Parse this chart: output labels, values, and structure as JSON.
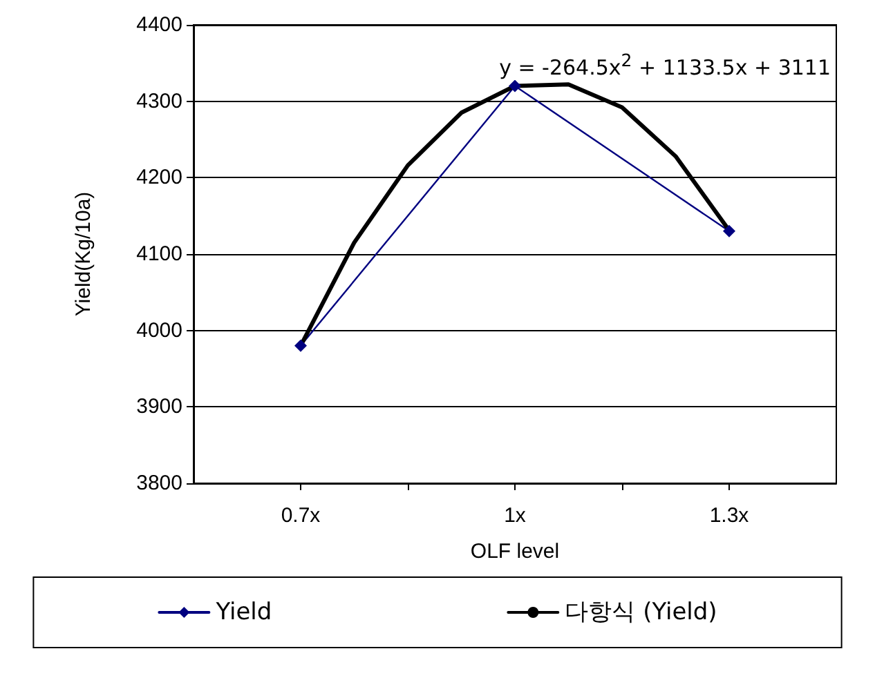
{
  "chart_data": {
    "type": "line",
    "xlabel": "OLF level",
    "ylabel": "Yield(Kg/10a)",
    "xlim": [
      0.55,
      1.45
    ],
    "xticks": [
      {
        "value": 0.7,
        "label": "0.7x"
      },
      {
        "value": 0.85,
        "label": null
      },
      {
        "value": 1,
        "label": "1x"
      },
      {
        "value": 1.15,
        "label": null
      },
      {
        "value": 1.3,
        "label": "1.3x"
      }
    ],
    "ylim": [
      3800,
      4400
    ],
    "yticks": [
      3800,
      3900,
      4000,
      4100,
      4200,
      4300,
      4400
    ],
    "grid": "y",
    "legend": "bottom",
    "line_style": "solid",
    "annotations": [
      "y = -264.5x$^{2}$ + 1133.5x + 3111"
    ],
    "series": [
      {
        "name": "Yield",
        "color": "#000080",
        "marker": "diamond",
        "x": [
          0.7,
          1,
          1.3
        ],
        "values": [
          3980,
          4320,
          4130
        ]
      },
      {
        "name": "다항식 (Yield)",
        "color": "#000000",
        "marker": "none",
        "type": "line",
        "x": [
          0.7,
          0.775,
          0.85,
          0.925,
          1,
          1.075,
          1.15,
          1.225,
          1.3
        ],
        "values": [
          3980,
          4115,
          4216,
          4285,
          4320,
          4322,
          4292,
          4228,
          4131
        ]
      }
    ]
  }
}
